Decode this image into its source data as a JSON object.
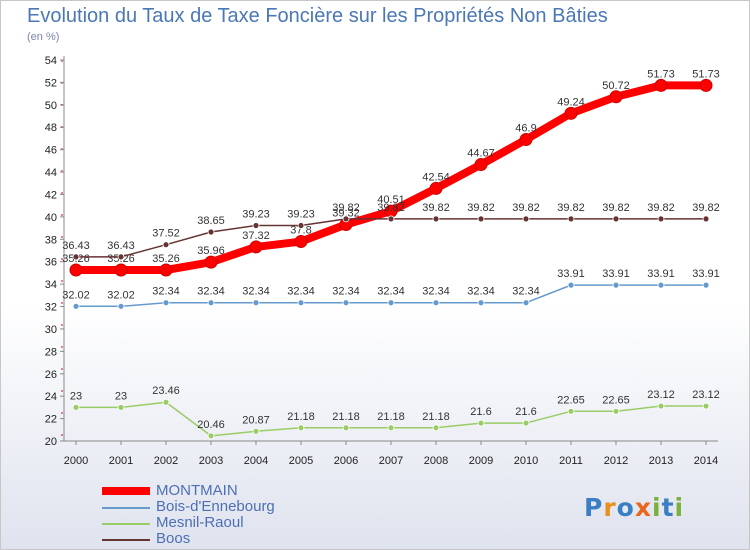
{
  "page": {
    "title": "Evolution du Taux de Taxe Foncière sur les Propriétés Non Bâties",
    "unit": "(en %)"
  },
  "legend": [
    {
      "label": "MONTMAIN",
      "color": "#ff0000"
    },
    {
      "label": "Bois-d'Ennebourg",
      "color": "#6699cc"
    },
    {
      "label": "Mesnil-Raoul",
      "color": "#99cc66"
    },
    {
      "label": "Boos",
      "color": "#663333"
    }
  ],
  "logo": {
    "text": "Proxiti",
    "letters": [
      "P",
      "r",
      "o",
      "x",
      "i",
      "t",
      "i"
    ],
    "colors": [
      "#3a7fc4",
      "#e98f1c",
      "#3a7fc4",
      "#e9661c",
      "#79b13a",
      "#3a7fc4",
      "#79b13a"
    ]
  },
  "chart_data": {
    "type": "line",
    "title": "Evolution du Taux de Taxe Foncière sur les Propriétés Non Bâties",
    "ylabel": "(en %)",
    "x": [
      "2000",
      "2001",
      "2002",
      "2003",
      "2004",
      "2005",
      "2006",
      "2007",
      "2008",
      "2009",
      "2010",
      "2011",
      "2012",
      "2013",
      "2014"
    ],
    "ylim": [
      20,
      54
    ],
    "yticks": [
      20,
      22,
      24,
      26,
      28,
      30,
      32,
      34,
      36,
      38,
      40,
      42,
      44,
      46,
      48,
      50,
      52,
      54
    ],
    "grid": false,
    "legend_position": "bottom-left",
    "series": [
      {
        "name": "MONTMAIN",
        "color": "#ff0000",
        "width": 8,
        "values": [
          35.26,
          35.26,
          35.26,
          35.96,
          37.32,
          37.8,
          39.32,
          40.51,
          42.54,
          44.67,
          46.9,
          49.24,
          50.72,
          51.73,
          51.73
        ],
        "labels": [
          "35.26",
          "35.26",
          "35.26",
          "35.96",
          "37.32",
          "37.8",
          "39.32",
          "40.51",
          "42.54",
          "44.67",
          "46.9",
          "49.24",
          "50.72",
          "51.73",
          "51.73"
        ]
      },
      {
        "name": "Bois-d'Ennebourg",
        "color": "#6699cc",
        "width": 1.5,
        "values": [
          32.02,
          32.02,
          32.34,
          32.34,
          32.34,
          32.34,
          32.34,
          32.34,
          32.34,
          32.34,
          32.34,
          33.91,
          33.91,
          33.91,
          33.91
        ],
        "labels": [
          "32.02",
          "32.02",
          "32.34",
          "32.34",
          "32.34",
          "32.34",
          "32.34",
          "32.34",
          "32.34",
          "32.34",
          "32.34",
          "33.91",
          "33.91",
          "33.91",
          "33.91"
        ]
      },
      {
        "name": "Mesnil-Raoul",
        "color": "#99cc66",
        "width": 1.5,
        "values": [
          23,
          23,
          23.46,
          20.46,
          20.87,
          21.18,
          21.18,
          21.18,
          21.18,
          21.6,
          21.6,
          22.65,
          22.65,
          23.12,
          23.12
        ],
        "labels": [
          "23",
          "23",
          "23.46",
          "20.46",
          "20.87",
          "21.18",
          "21.18",
          "21.18",
          "21.18",
          "21.6",
          "21.6",
          "22.65",
          "22.65",
          "23.12",
          "23.12"
        ]
      },
      {
        "name": "Boos",
        "color": "#663333",
        "width": 1.5,
        "values": [
          36.43,
          36.43,
          37.52,
          38.65,
          39.23,
          39.23,
          39.82,
          39.82,
          39.82,
          39.82,
          39.82,
          39.82,
          39.82,
          39.82,
          39.82
        ],
        "labels": [
          "36.43",
          "36.43",
          "37.52",
          "38.65",
          "39.23",
          "39.23",
          "39.82",
          "39.82",
          "39.82",
          "39.82",
          "39.82",
          "39.82",
          "39.82",
          "39.82",
          "39.82"
        ]
      }
    ]
  }
}
